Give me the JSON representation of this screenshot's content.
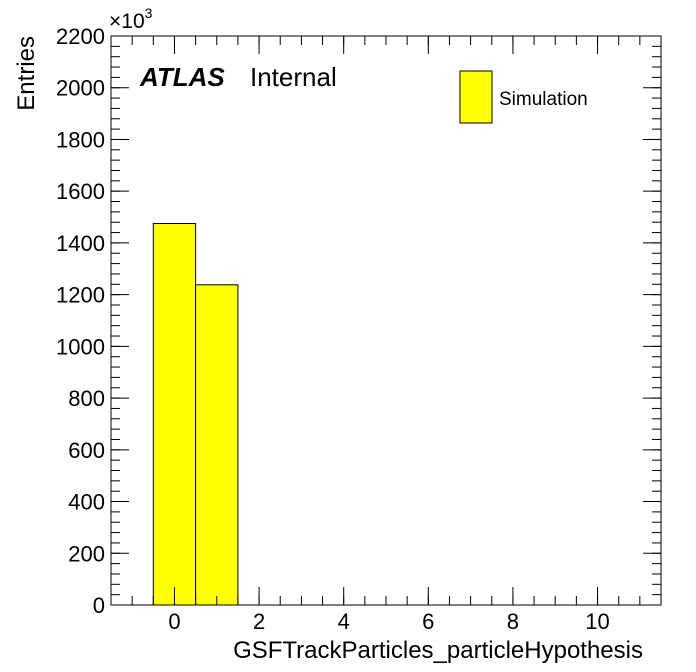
{
  "chart_data": {
    "type": "bar",
    "histogram": true,
    "bin_edges": [
      -0.5,
      0.5,
      1.5
    ],
    "values": [
      1475000,
      1238000
    ],
    "xlim": [
      -1.5,
      11.5
    ],
    "ylim": [
      0,
      2200000
    ],
    "x_ticks": [
      0,
      2,
      4,
      6,
      8,
      10
    ],
    "y_ticks": [
      0,
      200,
      400,
      600,
      800,
      1000,
      1200,
      1400,
      1600,
      1800,
      2000,
      2200
    ],
    "y_multiplier_base": "×10",
    "y_multiplier_exp": "3",
    "xlabel": "GSFTrackParticles_particleHypothesis",
    "ylabel": "Entries",
    "label_bold": "ATLAS",
    "label_text": "Internal",
    "legend": [
      {
        "name": "Simulation",
        "color": "#ffff00"
      }
    ],
    "legend_position": "top-right",
    "fill_color": "#ffff00",
    "edge_color": "#000000"
  }
}
